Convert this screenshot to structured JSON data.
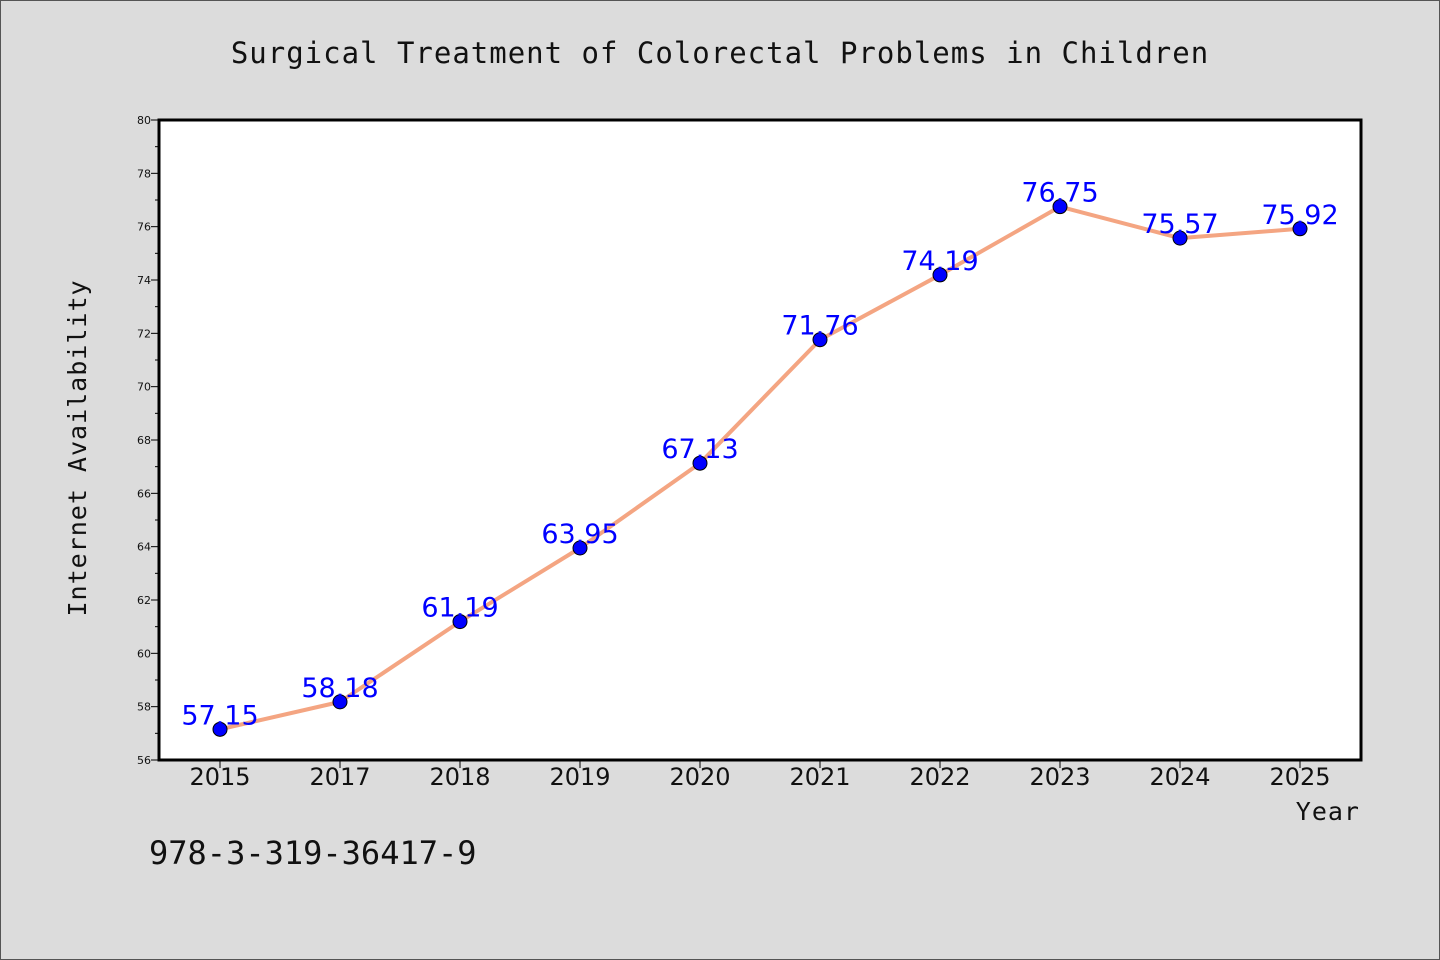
{
  "chart_data": {
    "type": "line",
    "title": "Surgical Treatment of Colorectal Problems in Children",
    "xlabel": "Year",
    "ylabel": "Internet Availability",
    "categories": [
      "2015",
      "2017",
      "2018",
      "2019",
      "2020",
      "2021",
      "2022",
      "2023",
      "2024",
      "2025"
    ],
    "series": [
      {
        "values": [
          57.15,
          58.18,
          61.19,
          63.95,
          67.13,
          71.76,
          74.19,
          76.75,
          75.57,
          75.92
        ]
      }
    ],
    "data_labels": [
      "57.15",
      "58.18",
      "61.19",
      "63.95",
      "67.13",
      "71.76",
      "74.19",
      "76.75",
      "75.57",
      "75.92"
    ],
    "ylim": [
      56,
      80
    ],
    "yticks": [
      "56",
      "58",
      "60",
      "62",
      "64",
      "66",
      "68",
      "70",
      "72",
      "74",
      "76",
      "78",
      "80"
    ],
    "grid": false,
    "colors": {
      "line": "#f4a582",
      "marker": "#0000ff",
      "label": "#0000ff",
      "background": "#dcdcdc",
      "plot": "#ffffff"
    }
  },
  "footer": {
    "isbn": "978-3-319-36417-9"
  }
}
